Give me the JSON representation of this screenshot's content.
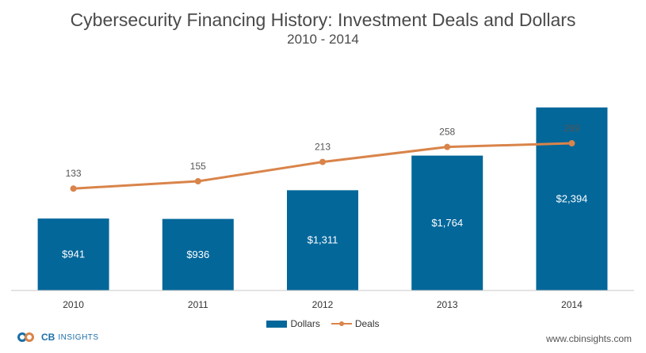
{
  "chart_data": {
    "type": "bar",
    "title": "Cybersecurity Financing History: Investment Deals and Dollars",
    "subtitle": "2010 - 2014",
    "categories": [
      "2010",
      "2011",
      "2012",
      "2013",
      "2014"
    ],
    "series": [
      {
        "name": "Dollars",
        "type": "bar",
        "values": [
          941,
          936,
          1311,
          1764,
          2394
        ],
        "labels": [
          "$941",
          "$936",
          "$1,311",
          "$1,764",
          "$2,394"
        ],
        "color": "#03679A"
      },
      {
        "name": "Deals",
        "type": "line",
        "values": [
          133,
          155,
          213,
          258,
          269
        ],
        "labels": [
          "133",
          "155",
          "213",
          "258",
          "269"
        ],
        "color": "#D9844A"
      }
    ],
    "legend_position": "bottom",
    "grid": false
  },
  "logo": {
    "brand": "CB",
    "brand_suffix": "INSIGHTS",
    "color": "#1B6FA8",
    "accent": "#D9844A"
  },
  "website": "www.cbinsights.com"
}
